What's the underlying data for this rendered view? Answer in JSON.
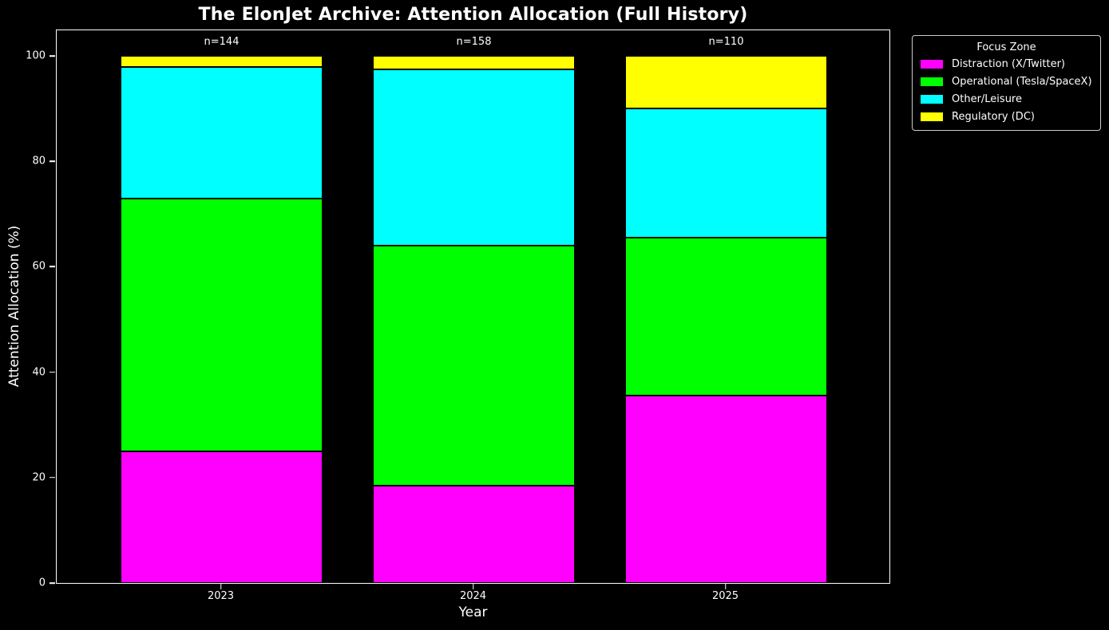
{
  "title": "The ElonJet Archive: Attention Allocation (Full History)",
  "chart_data": {
    "type": "bar",
    "stacked": true,
    "title": "The ElonJet Archive: Attention Allocation (Full History)",
    "categories": [
      "2023",
      "2024",
      "2025"
    ],
    "bar_annotations": [
      "n=144",
      "n=158",
      "n=110"
    ],
    "series": [
      {
        "name": "Distraction (X/Twitter)",
        "color": "#ff00ff",
        "values": [
          25.0,
          18.4,
          35.5
        ]
      },
      {
        "name": "Operational (Tesla/SpaceX)",
        "color": "#00ff00",
        "values": [
          47.9,
          45.6,
          30.0
        ]
      },
      {
        "name": "Other/Leisure",
        "color": "#00ffff",
        "values": [
          25.0,
          33.5,
          24.5
        ]
      },
      {
        "name": "Regulatory (DC)",
        "color": "#ffff00",
        "values": [
          2.1,
          2.5,
          10.0
        ]
      }
    ],
    "xlabel": "Year",
    "ylabel": "Attention Allocation (%)",
    "ylim": [
      0,
      100
    ],
    "yticks": [
      0,
      20,
      40,
      60,
      80,
      100
    ],
    "legend_title": "Focus Zone",
    "legend_position": "outside-top-right",
    "grid": false
  },
  "colors": {
    "background": "#000000",
    "text": "#ffffff",
    "axis_spine": "#ffffff",
    "bar_edge": "#000000",
    "legend_border": "#cccccc"
  }
}
